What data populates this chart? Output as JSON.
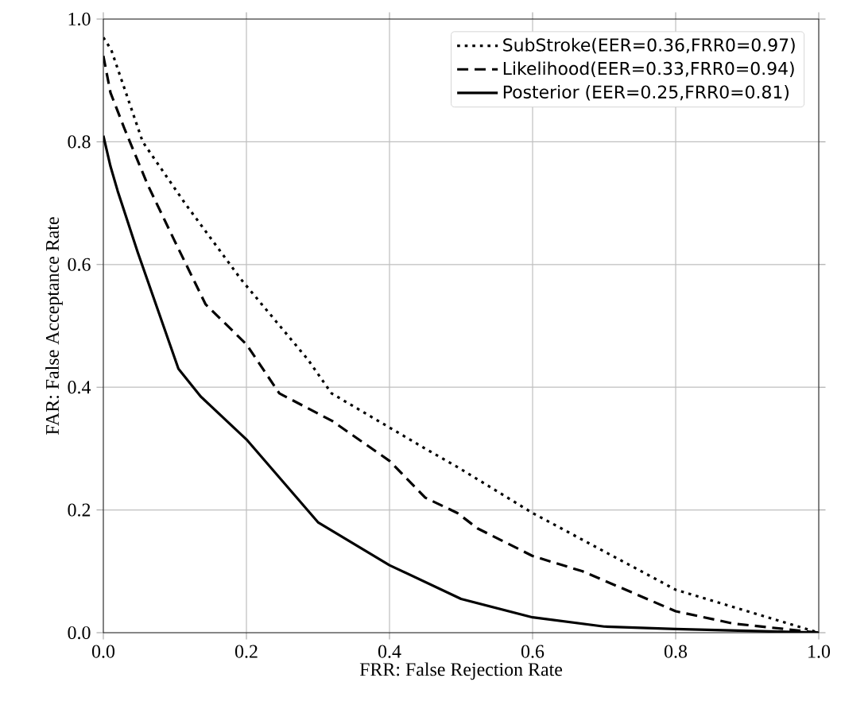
{
  "chart_data": {
    "type": "line",
    "xlabel": "FRR: False Rejection Rate",
    "ylabel": "FAR: False Acceptance Rate",
    "xlim": [
      0,
      1
    ],
    "ylim": [
      0,
      1
    ],
    "xticks": [
      {
        "value": 0,
        "label": "0.0"
      },
      0.2,
      0.4,
      0.6,
      0.8,
      {
        "value": 1,
        "label": "1.0"
      }
    ],
    "yticks": [
      {
        "value": 0,
        "label": "0.0"
      },
      0.2,
      0.4,
      0.6,
      0.8,
      {
        "value": 1,
        "label": "1.0"
      }
    ],
    "grid": true,
    "legend": "top right",
    "marker": "none",
    "series": [
      {
        "name": "SubStroke(EER=0.36,FRR0=0.97)",
        "color": "#000000",
        "line_style": "dotted",
        "x": [
          0,
          0.011,
          0.055,
          0.114,
          0.193,
          0.286,
          0.319,
          0.45,
          0.495,
          0.6,
          0.8,
          1.0
        ],
        "values": [
          0.97,
          0.95,
          0.8,
          0.7,
          0.575,
          0.445,
          0.39,
          0.3,
          0.27,
          0.195,
          0.07,
          0
        ]
      },
      {
        "name": "Likelihood(EER=0.33,FRR0=0.94)",
        "color": "#000000",
        "line_style": "dashed",
        "x": [
          0,
          0.01,
          0.03,
          0.062,
          0.099,
          0.143,
          0.2,
          0.246,
          0.32,
          0.4,
          0.45,
          0.495,
          0.523,
          0.6,
          0.67,
          0.8,
          0.88,
          1.0
        ],
        "values": [
          0.94,
          0.88,
          0.82,
          0.73,
          0.64,
          0.535,
          0.47,
          0.39,
          0.345,
          0.28,
          0.22,
          0.195,
          0.17,
          0.125,
          0.1,
          0.035,
          0.015,
          0
        ]
      },
      {
        "name": "Posterior  (EER=0.25,FRR0=0.81)",
        "color": "#000000",
        "line_style": "solid",
        "x": [
          0,
          0.01,
          0.02,
          0.048,
          0.105,
          0.136,
          0.2,
          0.3,
          0.4,
          0.5,
          0.6,
          0.7,
          0.8,
          1.0
        ],
        "values": [
          0.81,
          0.76,
          0.72,
          0.62,
          0.43,
          0.385,
          0.315,
          0.18,
          0.11,
          0.055,
          0.025,
          0.01,
          0.006,
          0
        ]
      }
    ]
  }
}
